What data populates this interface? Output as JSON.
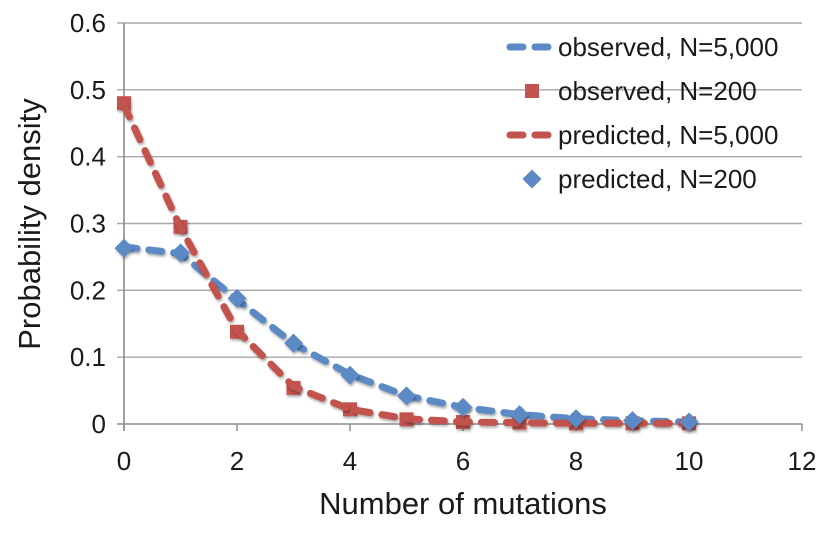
{
  "chart_data": {
    "type": "line",
    "title": "",
    "xlabel": "Number of mutations",
    "ylabel": "Probability density",
    "x": [
      0,
      1,
      2,
      3,
      4,
      5,
      6,
      7,
      8,
      9,
      10
    ],
    "xlim": [
      0,
      12
    ],
    "ylim": [
      0,
      0.6
    ],
    "x_tick_labels": [
      "0",
      "2",
      "4",
      "6",
      "8",
      "10",
      "12"
    ],
    "x_tick_values": [
      0,
      2,
      4,
      6,
      8,
      10,
      12
    ],
    "y_tick_labels": [
      "0",
      "0.1",
      "0.2",
      "0.3",
      "0.4",
      "0.5",
      "0.6"
    ],
    "y_tick_values": [
      0,
      0.1,
      0.2,
      0.3,
      0.4,
      0.5,
      0.6
    ],
    "grid": true,
    "legend_position": "inside-top-right",
    "series": [
      {
        "id": "observed-n5000",
        "name": "observed, N=5,000",
        "color": "#5B8AC5",
        "line": "dashed",
        "marker": "none",
        "values": [
          0.265,
          0.255,
          0.186,
          0.12,
          0.074,
          0.042,
          0.025,
          0.014,
          0.008,
          0.005,
          0.003
        ]
      },
      {
        "id": "observed-n200",
        "name": "observed, N=200",
        "color": "#C3534E",
        "line": "none",
        "marker": "square",
        "values": [
          0.48,
          0.295,
          0.138,
          0.054,
          0.022,
          0.007,
          0.003,
          0.002,
          0.001,
          0.001,
          0.001
        ]
      },
      {
        "id": "predicted-n5000",
        "name": "predicted, N=5,000",
        "color": "#C3534E",
        "line": "dashed",
        "marker": "none",
        "values": [
          0.477,
          0.294,
          0.14,
          0.056,
          0.022,
          0.008,
          0.003,
          0.002,
          0.001,
          0.001,
          0.001
        ]
      },
      {
        "id": "predicted-n200",
        "name": "predicted, N=200",
        "color": "#5B8AC5",
        "line": "none",
        "marker": "diamond",
        "values": [
          0.263,
          0.256,
          0.188,
          0.121,
          0.073,
          0.042,
          0.025,
          0.014,
          0.008,
          0.005,
          0.003
        ]
      }
    ]
  },
  "colors": {
    "background": "#FFFFFF",
    "gridline": "#A8A8A8",
    "axis": "#8C8C8C",
    "text": "#1A1A1A",
    "series_blue": "#5B8AC5",
    "series_red": "#C3534E"
  }
}
